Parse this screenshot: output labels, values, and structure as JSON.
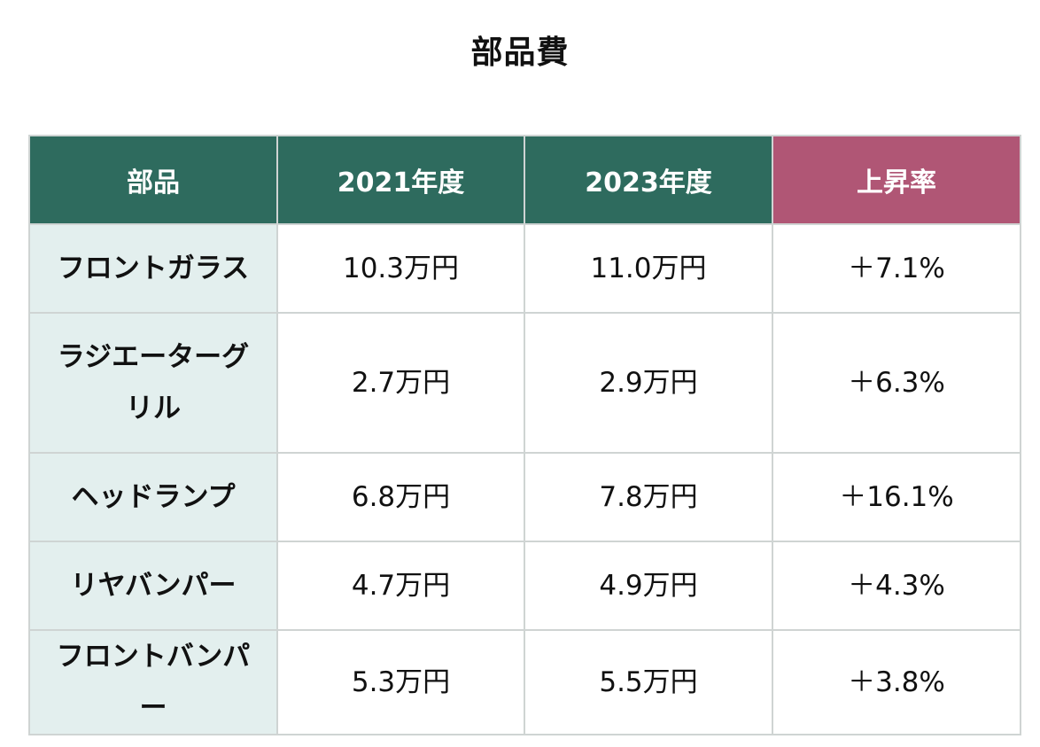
{
  "title": "部品費",
  "table": {
    "headers": [
      "部品",
      "2021年度",
      "2023年度",
      "上昇率"
    ],
    "rows": [
      {
        "part": "フロントガラス",
        "y2021": "10.3万円",
        "y2023": "11.0万円",
        "rate": "＋7.1%"
      },
      {
        "part": "ラジエーターグリル",
        "y2021": "2.7万円",
        "y2023": "2.9万円",
        "rate": "＋6.3%"
      },
      {
        "part": "ヘッドランプ",
        "y2021": "6.8万円",
        "y2023": "7.8万円",
        "rate": "＋16.1%"
      },
      {
        "part": "リヤバンパー",
        "y2021": "4.7万円",
        "y2023": "4.9万円",
        "rate": "＋4.3%"
      },
      {
        "part": "フロントバンパー",
        "y2021": "5.3万円",
        "y2023": "5.5万円",
        "rate": "＋3.8%"
      }
    ]
  },
  "colors": {
    "header_green": "#2e6b5e",
    "header_rate": "#b05675",
    "part_cell_bg": "#e3efee",
    "border": "#cfd4d3"
  }
}
